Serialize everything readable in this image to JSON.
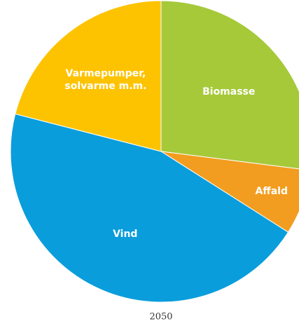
{
  "chart_data": {
    "type": "pie",
    "title": "2050",
    "categories": [
      "Biomasse",
      "Affald",
      "Vind",
      "Varmepumper, solvarme m.m."
    ],
    "values": [
      27,
      7,
      45,
      21
    ],
    "colors": [
      "#a6c93a",
      "#f29d1f",
      "#0a9ddc",
      "#fdc300"
    ]
  }
}
